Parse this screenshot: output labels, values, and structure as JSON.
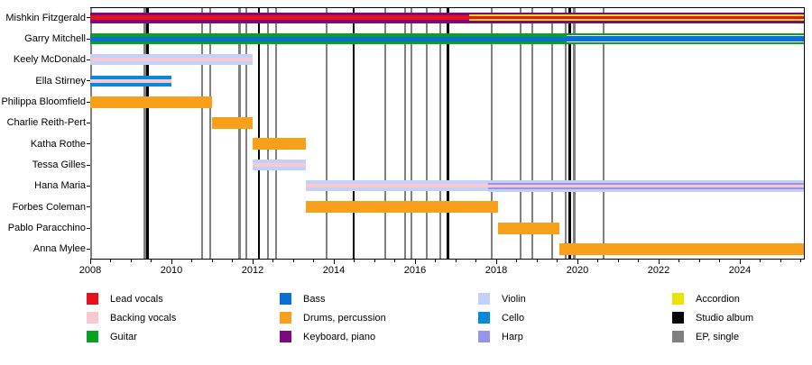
{
  "chart_data": {
    "type": "bar",
    "subtype": "band-member-timeline-gantt",
    "title": "",
    "xlabel": "",
    "ylabel": "",
    "grid": false,
    "x_axis": {
      "min": 2008,
      "max": 2025.6,
      "major_ticks": [
        2008,
        2010,
        2012,
        2014,
        2016,
        2018,
        2020,
        2022,
        2024
      ],
      "minor_tick_step": 0.5
    },
    "colors": {
      "lead_vocals": "#e8101a",
      "backing_vocals": "#f8c9d3",
      "guitar": "#0aa122",
      "bass": "#0a6ed6",
      "drums": "#f9a01b",
      "keyboard": "#7a0a7d",
      "violin": "#c3d0f7",
      "cello": "#0989d9",
      "harp": "#9695ea",
      "accordion": "#e8e400",
      "studio_album": "#000000",
      "ep_single": "#808080",
      "white": "#ffffff"
    },
    "members": [
      {
        "name": "Mishkin Fitzgerald",
        "segments": [
          {
            "start": 2008.0,
            "end": 2017.33,
            "stripes": [
              [
                "keyboard",
                3.5
              ],
              [
                "lead_vocals",
                5
              ],
              [
                "keyboard",
                3.5
              ]
            ]
          },
          {
            "start": 2017.33,
            "end": 2025.6,
            "stripes": [
              [
                "keyboard",
                2.4
              ],
              [
                "accordion",
                2.2
              ],
              [
                "lead_vocals",
                2.8
              ],
              [
                "accordion",
                2.2
              ],
              [
                "keyboard",
                2.4
              ]
            ]
          }
        ]
      },
      {
        "name": "Garry Mitchell",
        "segments": [
          {
            "start": 2008.0,
            "end": 2019.73,
            "stripes": [
              [
                "guitar",
                3.5
              ],
              [
                "bass",
                5
              ],
              [
                "guitar",
                3.5
              ]
            ]
          },
          {
            "start": 2019.73,
            "end": 2025.6,
            "stripes": [
              [
                "guitar",
                1.8
              ],
              [
                "white",
                1.6
              ],
              [
                "bass",
                5.2
              ],
              [
                "white",
                1.6
              ],
              [
                "guitar",
                1.8
              ]
            ]
          }
        ]
      },
      {
        "name": "Keely McDonald",
        "segments": [
          {
            "start": 2008.0,
            "end": 2012.0,
            "stripes": [
              [
                "violin",
                4
              ],
              [
                "backing_vocals",
                4
              ],
              [
                "violin",
                4
              ]
            ]
          }
        ]
      },
      {
        "name": "Ella Stirney",
        "segments": [
          {
            "start": 2008.0,
            "end": 2010.0,
            "stripes": [
              [
                "cello",
                4
              ],
              [
                "backing_vocals",
                4
              ],
              [
                "cello",
                4
              ]
            ]
          }
        ]
      },
      {
        "name": "Philippa Bloomfield",
        "segments": [
          {
            "start": 2008.0,
            "end": 2011.0,
            "stripes": [
              [
                "drums",
                13
              ]
            ]
          }
        ]
      },
      {
        "name": "Charlie Reith-Pert",
        "segments": [
          {
            "start": 2011.0,
            "end": 2012.0,
            "stripes": [
              [
                "drums",
                13
              ]
            ]
          }
        ]
      },
      {
        "name": "Katha Rothe",
        "segments": [
          {
            "start": 2012.0,
            "end": 2013.3,
            "stripes": [
              [
                "drums",
                13
              ]
            ]
          }
        ]
      },
      {
        "name": "Tessa Gilles",
        "segments": [
          {
            "start": 2012.0,
            "end": 2013.3,
            "stripes": [
              [
                "violin",
                4
              ],
              [
                "backing_vocals",
                4
              ],
              [
                "violin",
                4
              ]
            ]
          }
        ]
      },
      {
        "name": "Hana Maria",
        "segments": [
          {
            "start": 2013.3,
            "end": 2017.8,
            "stripes": [
              [
                "violin",
                4
              ],
              [
                "backing_vocals",
                4
              ],
              [
                "violin",
                4
              ]
            ]
          },
          {
            "start": 2017.8,
            "end": 2025.6,
            "stripes": [
              [
                "violin",
                2.5
              ],
              [
                "harp",
                2.5
              ],
              [
                "backing_vocals",
                2.5
              ],
              [
                "harp",
                2.5
              ],
              [
                "violin",
                2.5
              ]
            ]
          }
        ]
      },
      {
        "name": "Forbes Coleman",
        "segments": [
          {
            "start": 2013.3,
            "end": 2018.05,
            "stripes": [
              [
                "drums",
                13
              ]
            ]
          }
        ]
      },
      {
        "name": "Pablo Paracchino",
        "segments": [
          {
            "start": 2018.05,
            "end": 2019.55,
            "stripes": [
              [
                "drums",
                13
              ]
            ]
          }
        ]
      },
      {
        "name": "Anna Mylee",
        "segments": [
          {
            "start": 2019.55,
            "end": 2025.6,
            "stripes": [
              [
                "drums",
                13
              ]
            ]
          }
        ]
      }
    ],
    "events": [
      {
        "year": 2008.02,
        "type": "ep_single"
      },
      {
        "year": 2009.34,
        "type": "ep_single"
      },
      {
        "year": 2009.41,
        "type": "studio_album"
      },
      {
        "year": 2010.76,
        "type": "ep_single"
      },
      {
        "year": 2010.96,
        "type": "ep_single"
      },
      {
        "year": 2011.68,
        "type": "ep_single"
      },
      {
        "year": 2011.84,
        "type": "ep_single"
      },
      {
        "year": 2012.16,
        "type": "studio_album"
      },
      {
        "year": 2012.38,
        "type": "ep_single"
      },
      {
        "year": 2012.58,
        "type": "ep_single"
      },
      {
        "year": 2013.82,
        "type": "ep_single"
      },
      {
        "year": 2014.49,
        "type": "studio_album"
      },
      {
        "year": 2015.27,
        "type": "ep_single"
      },
      {
        "year": 2015.76,
        "type": "ep_single"
      },
      {
        "year": 2015.91,
        "type": "ep_single"
      },
      {
        "year": 2016.29,
        "type": "ep_single"
      },
      {
        "year": 2016.62,
        "type": "ep_single"
      },
      {
        "year": 2016.81,
        "type": "studio_album"
      },
      {
        "year": 2017.89,
        "type": "ep_single"
      },
      {
        "year": 2018.6,
        "type": "ep_single"
      },
      {
        "year": 2018.89,
        "type": "ep_single"
      },
      {
        "year": 2019.38,
        "type": "ep_single"
      },
      {
        "year": 2019.71,
        "type": "ep_single"
      },
      {
        "year": 2019.81,
        "type": "studio_album"
      },
      {
        "year": 2019.92,
        "type": "ep_single"
      },
      {
        "year": 2020.64,
        "type": "ep_single"
      }
    ],
    "legend": {
      "position": "bottom",
      "columns": [
        [
          {
            "label": "Lead vocals",
            "key": "lead_vocals"
          },
          {
            "label": "Backing vocals",
            "key": "backing_vocals"
          },
          {
            "label": "Guitar",
            "key": "guitar"
          }
        ],
        [
          {
            "label": "Bass",
            "key": "bass"
          },
          {
            "label": "Drums, percussion",
            "key": "drums"
          },
          {
            "label": "Keyboard, piano",
            "key": "keyboard"
          }
        ],
        [
          {
            "label": "Violin",
            "key": "violin"
          },
          {
            "label": "Cello",
            "key": "cello"
          },
          {
            "label": "Harp",
            "key": "harp"
          }
        ],
        [
          {
            "label": "Accordion",
            "key": "accordion"
          },
          {
            "label": "Studio album",
            "key": "studio_album"
          },
          {
            "label": "EP, single",
            "key": "ep_single"
          }
        ]
      ]
    }
  }
}
